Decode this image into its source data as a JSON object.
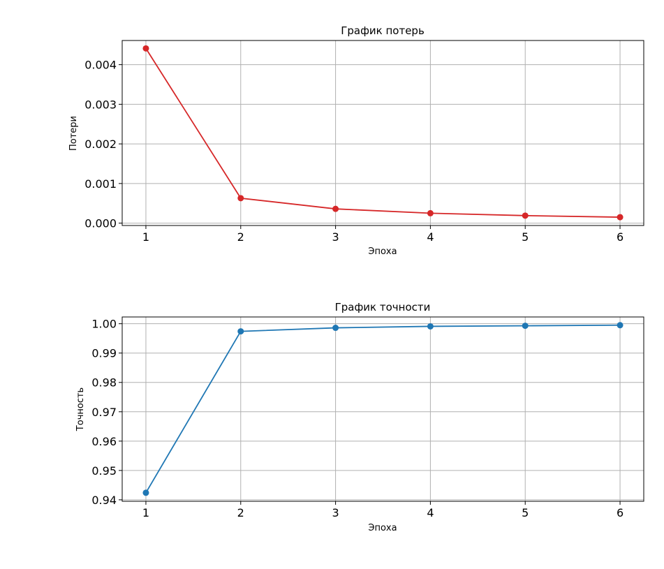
{
  "chart_data": [
    {
      "type": "line",
      "title": "График потерь",
      "xlabel": "Эпоха",
      "ylabel": "Потери",
      "x": [
        1,
        2,
        3,
        4,
        5,
        6
      ],
      "xticks": [
        "1",
        "2",
        "3",
        "4",
        "5",
        "6"
      ],
      "yticks": [
        "0.000",
        "0.001",
        "0.002",
        "0.003",
        "0.004"
      ],
      "ytick_values": [
        0.0,
        0.001,
        0.002,
        0.003,
        0.004
      ],
      "xlim": [
        0.75,
        6.25
      ],
      "ylim": [
        -6e-05,
        0.00461
      ],
      "series": [
        {
          "values": [
            0.00441,
            0.00063,
            0.00036,
            0.00025,
            0.00019,
            0.00015
          ],
          "color": "#d62728",
          "marker": "circle"
        }
      ],
      "grid": true
    },
    {
      "type": "line",
      "title": "График точности",
      "xlabel": "Эпоха",
      "ylabel": "Точность",
      "x": [
        1,
        2,
        3,
        4,
        5,
        6
      ],
      "xticks": [
        "1",
        "2",
        "3",
        "4",
        "5",
        "6"
      ],
      "yticks": [
        "0.94",
        "0.95",
        "0.96",
        "0.97",
        "0.98",
        "0.99",
        "1.00"
      ],
      "ytick_values": [
        0.94,
        0.95,
        0.96,
        0.97,
        0.98,
        0.99,
        1.0
      ],
      "xlim": [
        0.75,
        6.25
      ],
      "ylim": [
        0.9395,
        1.0023
      ],
      "series": [
        {
          "values": [
            0.9424,
            0.9974,
            0.9986,
            0.9991,
            0.9993,
            0.9995
          ],
          "color": "#1f77b4",
          "marker": "circle"
        }
      ],
      "grid": true
    }
  ]
}
